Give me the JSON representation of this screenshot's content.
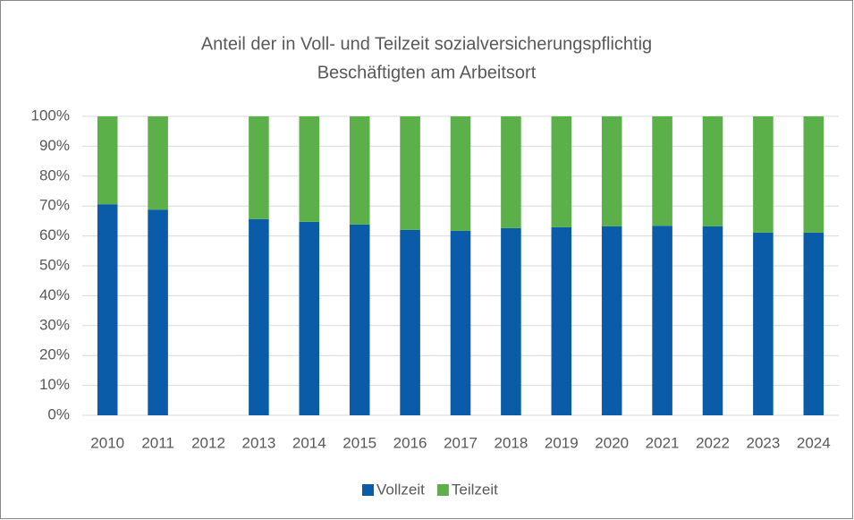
{
  "chart_data": {
    "type": "stacked_bar",
    "title": [
      "Anteil der in Voll- und Teilzeit sozialversicherungspflichtig",
      "Beschäftigten am Arbeitsort"
    ],
    "categories": [
      "2010",
      "2011",
      "2012",
      "2013",
      "2014",
      "2015",
      "2016",
      "2017",
      "2018",
      "2019",
      "2020",
      "2021",
      "2022",
      "2023",
      "2024"
    ],
    "series": [
      {
        "name": "Vollzeit",
        "color": "#0b5ca8",
        "values": [
          70.6,
          68.8,
          null,
          65.6,
          64.7,
          63.8,
          62.0,
          61.7,
          62.6,
          62.9,
          63.2,
          63.4,
          63.2,
          61.1,
          61.1
        ]
      },
      {
        "name": "Teilzeit",
        "color": "#5cb04a",
        "values": [
          29.4,
          31.2,
          null,
          34.4,
          35.3,
          36.2,
          38.0,
          38.3,
          37.4,
          37.1,
          36.8,
          36.6,
          36.8,
          38.9,
          38.9
        ]
      }
    ],
    "ylim": [
      0,
      100
    ],
    "yticks": [
      {
        "value": 0,
        "label": "0%"
      },
      {
        "value": 10,
        "label": "10%"
      },
      {
        "value": 20,
        "label": "20%"
      },
      {
        "value": 30,
        "label": "30%"
      },
      {
        "value": 40,
        "label": "40%"
      },
      {
        "value": 50,
        "label": "50%"
      },
      {
        "value": 60,
        "label": "60%"
      },
      {
        "value": 70,
        "label": "70%"
      },
      {
        "value": 80,
        "label": "80%"
      },
      {
        "value": 90,
        "label": "90%"
      },
      {
        "value": 100,
        "label": "100%"
      }
    ],
    "grid": true,
    "legend": "bottom"
  }
}
